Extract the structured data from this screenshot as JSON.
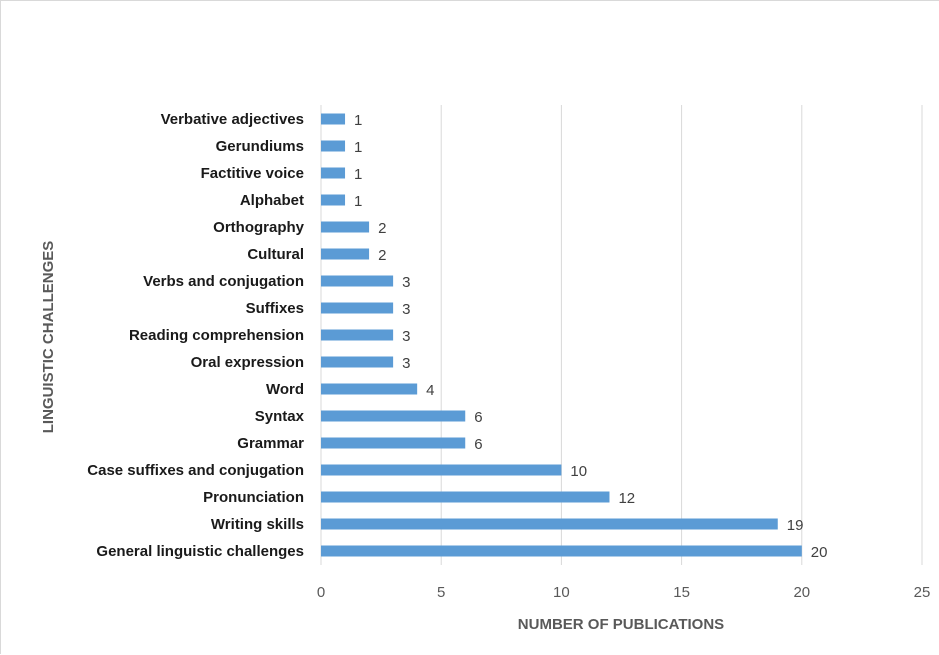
{
  "chart_data": {
    "type": "bar",
    "orientation": "horizontal",
    "title": "",
    "xlabel": "NUMBER OF PUBLICATIONS",
    "ylabel": "LINGUISTIC CHALLENGES",
    "xlim": [
      0,
      25
    ],
    "xticks": [
      0,
      5,
      10,
      15,
      20,
      25
    ],
    "grid": "vertical",
    "legend": "none",
    "bar_color": "#5b9bd5",
    "categories": [
      "Verbative adjectives",
      "Gerundiums",
      "Factitive voice",
      "Alphabet",
      "Orthography",
      "Cultural",
      "Verbs and conjugation",
      "Suffixes",
      "Reading comprehension",
      "Oral expression",
      "Word",
      "Syntax",
      "Grammar",
      "Case suffixes and conjugation",
      "Pronunciation",
      "Writing skills",
      "General linguistic challenges"
    ],
    "values": [
      1,
      1,
      1,
      1,
      2,
      2,
      3,
      3,
      3,
      3,
      4,
      6,
      6,
      10,
      12,
      19,
      20
    ]
  }
}
